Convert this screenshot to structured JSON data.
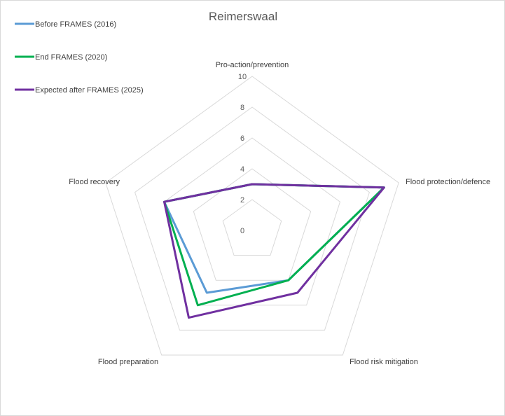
{
  "chart_data": {
    "type": "radar",
    "title": "Reimerswaal",
    "categories": [
      "Pro-action/prevention",
      "Flood protection/defence",
      "Flood risk mitigation",
      "Flood preparation",
      "Flood recovery"
    ],
    "rmin": 0,
    "rmax": 10,
    "ticks": [
      "0",
      "2",
      "4",
      "6",
      "8",
      "10"
    ],
    "tick_values": [
      0,
      2,
      4,
      6,
      8,
      10
    ],
    "grid": true,
    "legend_position": "top-left",
    "series": [
      {
        "name": "Before FRAMES (2016)",
        "color": "#5b9bd5",
        "values": [
          3,
          9,
          4,
          5,
          6
        ]
      },
      {
        "name": "End FRAMES (2020)",
        "color": "#00b050",
        "values": [
          3,
          9,
          4,
          6,
          6
        ]
      },
      {
        "name": "Expected after FRAMES (2025)",
        "color": "#7030a0",
        "values": [
          3,
          9,
          5,
          7,
          6
        ]
      }
    ]
  }
}
